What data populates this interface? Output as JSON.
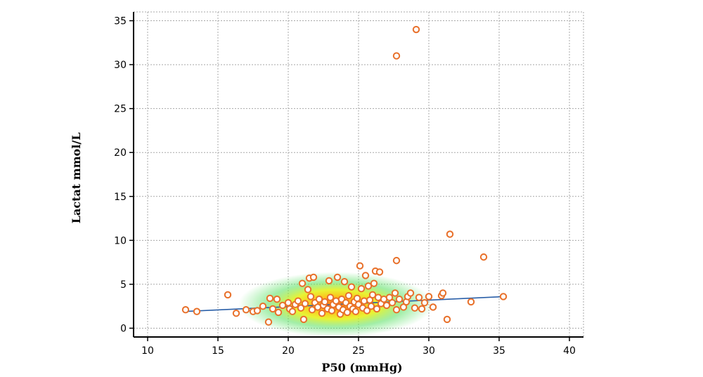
{
  "chart_data": {
    "type": "scatter",
    "xlabel": "P50 (mmHg)",
    "ylabel": "Lactat mmol/L",
    "xlim": [
      9,
      41
    ],
    "ylim": [
      -1,
      36
    ],
    "xticks": [
      10,
      15,
      20,
      25,
      30,
      35,
      40
    ],
    "yticks": [
      0,
      5,
      10,
      15,
      20,
      25,
      30,
      35
    ],
    "grid": true,
    "density_overlay": true,
    "marker_color": "#e8702a",
    "trend_color": "#2a5fa8",
    "trend_line": {
      "x": [
        12.6,
        35.4
      ],
      "y": [
        1.9,
        3.6
      ]
    },
    "points": [
      [
        12.7,
        2.1
      ],
      [
        13.5,
        1.9
      ],
      [
        15.7,
        3.8
      ],
      [
        16.3,
        1.7
      ],
      [
        17.0,
        2.1
      ],
      [
        17.5,
        1.9
      ],
      [
        17.8,
        2.0
      ],
      [
        18.2,
        2.5
      ],
      [
        18.6,
        0.7
      ],
      [
        18.7,
        3.4
      ],
      [
        18.9,
        2.2
      ],
      [
        19.2,
        3.3
      ],
      [
        19.3,
        1.8
      ],
      [
        19.6,
        2.6
      ],
      [
        20.0,
        2.9
      ],
      [
        20.1,
        2.2
      ],
      [
        20.3,
        1.9
      ],
      [
        20.5,
        2.7
      ],
      [
        20.7,
        3.1
      ],
      [
        20.9,
        2.3
      ],
      [
        21.0,
        5.1
      ],
      [
        21.1,
        1.0
      ],
      [
        21.2,
        2.8
      ],
      [
        21.4,
        4.4
      ],
      [
        21.5,
        5.7
      ],
      [
        21.6,
        3.6
      ],
      [
        21.7,
        2.1
      ],
      [
        21.8,
        5.8
      ],
      [
        21.9,
        2.9
      ],
      [
        22.1,
        2.4
      ],
      [
        22.2,
        3.3
      ],
      [
        22.4,
        1.7
      ],
      [
        22.5,
        2.6
      ],
      [
        22.6,
        3.0
      ],
      [
        22.8,
        2.2
      ],
      [
        22.9,
        5.4
      ],
      [
        23.0,
        3.5
      ],
      [
        23.1,
        2.0
      ],
      [
        23.2,
        2.7
      ],
      [
        23.4,
        3.1
      ],
      [
        23.5,
        5.8
      ],
      [
        23.6,
        2.4
      ],
      [
        23.7,
        1.6
      ],
      [
        23.8,
        3.3
      ],
      [
        23.9,
        2.1
      ],
      [
        24.0,
        5.3
      ],
      [
        24.1,
        2.9
      ],
      [
        24.2,
        1.8
      ],
      [
        24.3,
        3.7
      ],
      [
        24.4,
        2.5
      ],
      [
        24.5,
        4.7
      ],
      [
        24.6,
        2.2
      ],
      [
        24.7,
        3.0
      ],
      [
        24.8,
        1.9
      ],
      [
        24.9,
        3.4
      ],
      [
        25.0,
        2.7
      ],
      [
        25.1,
        7.1
      ],
      [
        25.2,
        4.5
      ],
      [
        25.3,
        2.3
      ],
      [
        25.4,
        3.1
      ],
      [
        25.5,
        6.0
      ],
      [
        25.6,
        2.0
      ],
      [
        25.7,
        4.8
      ],
      [
        25.8,
        3.2
      ],
      [
        25.9,
        2.5
      ],
      [
        26.0,
        3.8
      ],
      [
        26.1,
        5.1
      ],
      [
        26.2,
        6.5
      ],
      [
        26.3,
        2.2
      ],
      [
        26.4,
        3.5
      ],
      [
        26.5,
        6.4
      ],
      [
        26.6,
        2.8
      ],
      [
        26.8,
        3.3
      ],
      [
        27.0,
        2.6
      ],
      [
        27.2,
        3.5
      ],
      [
        27.4,
        2.9
      ],
      [
        27.6,
        4.0
      ],
      [
        27.7,
        2.1
      ],
      [
        27.7,
        31.0
      ],
      [
        27.7,
        7.7
      ],
      [
        27.9,
        3.3
      ],
      [
        28.2,
        2.4
      ],
      [
        28.4,
        3.0
      ],
      [
        28.5,
        3.6
      ],
      [
        28.7,
        4.0
      ],
      [
        29.0,
        2.3
      ],
      [
        29.1,
        34.0
      ],
      [
        29.3,
        3.5
      ],
      [
        29.5,
        2.2
      ],
      [
        29.7,
        2.9
      ],
      [
        30.0,
        3.6
      ],
      [
        30.3,
        2.4
      ],
      [
        30.9,
        3.7
      ],
      [
        31.0,
        4.0
      ],
      [
        31.3,
        1.0
      ],
      [
        31.5,
        10.7
      ],
      [
        33.0,
        3.0
      ],
      [
        33.9,
        8.1
      ],
      [
        35.3,
        3.6
      ]
    ]
  }
}
